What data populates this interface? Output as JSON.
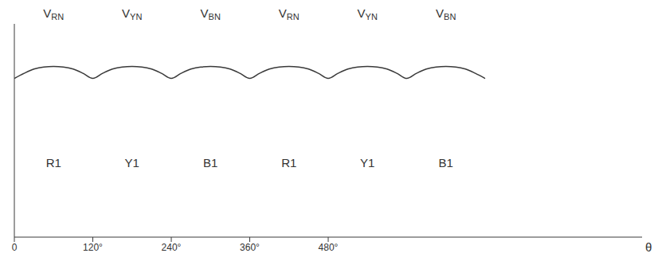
{
  "chart_data": {
    "type": "line",
    "xlabel": "θ",
    "color": "#3a3a3a",
    "grid": false,
    "tick_labels": "x",
    "xlim": [
      0,
      960
    ],
    "ylim": [
      0,
      1.25
    ],
    "xticks": [
      0,
      {
        "value": 120,
        "label": "120°"
      },
      {
        "value": 240,
        "label": "240°"
      },
      {
        "value": 360,
        "label": "360°"
      },
      {
        "value": 480,
        "label": "480°"
      }
    ],
    "x": [
      0,
      15,
      30,
      45,
      60,
      75,
      90,
      105,
      120,
      135,
      150,
      165,
      180,
      195,
      210,
      225,
      240,
      255,
      270,
      285,
      300,
      315,
      330,
      345,
      360,
      375,
      390,
      405,
      420,
      435,
      450,
      465,
      480,
      495,
      510,
      525,
      540,
      555,
      570,
      585,
      600,
      615,
      630,
      645,
      660,
      675,
      690,
      705,
      720
    ],
    "values": [
      0.93,
      0.96,
      0.985,
      0.997,
      1,
      0.997,
      0.985,
      0.96,
      0.93,
      0.96,
      0.985,
      0.997,
      1,
      0.997,
      0.985,
      0.96,
      0.93,
      0.96,
      0.985,
      0.997,
      1,
      0.997,
      0.985,
      0.96,
      0.93,
      0.96,
      0.985,
      0.997,
      1,
      0.997,
      0.985,
      0.96,
      0.93,
      0.96,
      0.985,
      0.997,
      1,
      0.997,
      0.985,
      0.96,
      0.93,
      0.96,
      0.985,
      0.997,
      1,
      0.997,
      0.985,
      0.96,
      0.93
    ],
    "segments": [
      {
        "name": "V",
        "sub": "RN",
        "phase": "R1",
        "start": 0,
        "end": 120
      },
      {
        "name": "V",
        "sub": "YN",
        "phase": "Y1",
        "start": 120,
        "end": 240
      },
      {
        "name": "V",
        "sub": "BN",
        "phase": "B1",
        "start": 240,
        "end": 360
      },
      {
        "name": "V",
        "sub": "RN",
        "phase": "R1",
        "start": 360,
        "end": 480
      },
      {
        "name": "V",
        "sub": "YN",
        "phase": "Y1",
        "start": 480,
        "end": 600
      },
      {
        "name": "V",
        "sub": "BN",
        "phase": "B1",
        "start": 600,
        "end": 720
      }
    ]
  }
}
